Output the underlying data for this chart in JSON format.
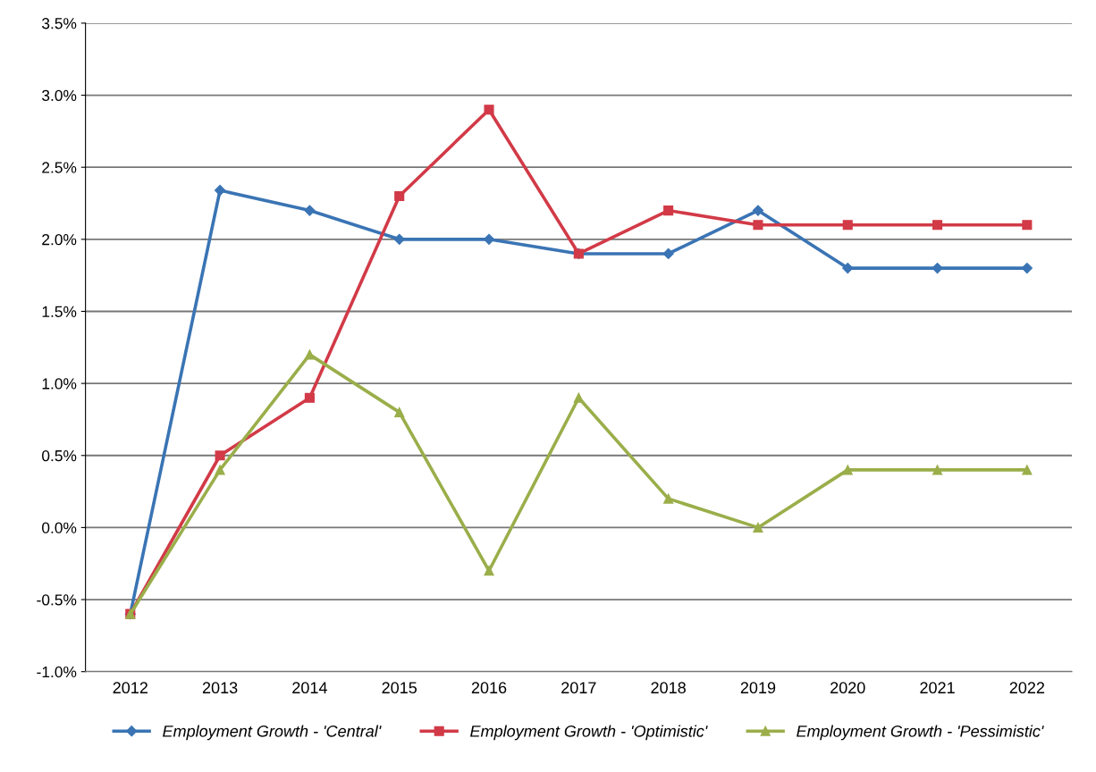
{
  "chart_data": {
    "type": "line",
    "categories": [
      "2012",
      "2013",
      "2014",
      "2015",
      "2016",
      "2017",
      "2018",
      "2019",
      "2020",
      "2021",
      "2022"
    ],
    "series": [
      {
        "name": "Employment Growth - 'Central'",
        "color": "#3a74b4",
        "marker": "diamond",
        "values": [
          -0.6,
          2.34,
          2.2,
          2.0,
          2.0,
          1.9,
          1.9,
          2.2,
          1.8,
          1.8,
          1.8
        ]
      },
      {
        "name": "Employment Growth - 'Optimistic'",
        "color": "#d23a47",
        "marker": "square",
        "values": [
          -0.6,
          0.5,
          0.9,
          2.3,
          2.9,
          1.9,
          2.2,
          2.1,
          2.1,
          2.1,
          2.1
        ]
      },
      {
        "name": "Employment Growth - 'Pessimistic'",
        "color": "#9aae4a",
        "marker": "triangle",
        "values": [
          -0.6,
          0.4,
          1.2,
          0.8,
          -0.3,
          0.9,
          0.2,
          0.0,
          0.4,
          0.4,
          0.4
        ]
      }
    ],
    "ylim": [
      -1.0,
      3.5
    ],
    "yticks": [
      {
        "value": -1.0,
        "label": "-1.0%"
      },
      {
        "value": -0.5,
        "label": "-0.5%"
      },
      {
        "value": 0.0,
        "label": "0.0%"
      },
      {
        "value": 0.5,
        "label": "0.5%"
      },
      {
        "value": 1.0,
        "label": "1.0%"
      },
      {
        "value": 1.5,
        "label": "1.5%"
      },
      {
        "value": 2.0,
        "label": "2.0%"
      },
      {
        "value": 2.5,
        "label": "2.5%"
      },
      {
        "value": 3.0,
        "label": "3.0%"
      },
      {
        "value": 3.5,
        "label": "3.5%"
      }
    ],
    "grid": "y",
    "legend": "bottom",
    "line_style": "solid"
  }
}
